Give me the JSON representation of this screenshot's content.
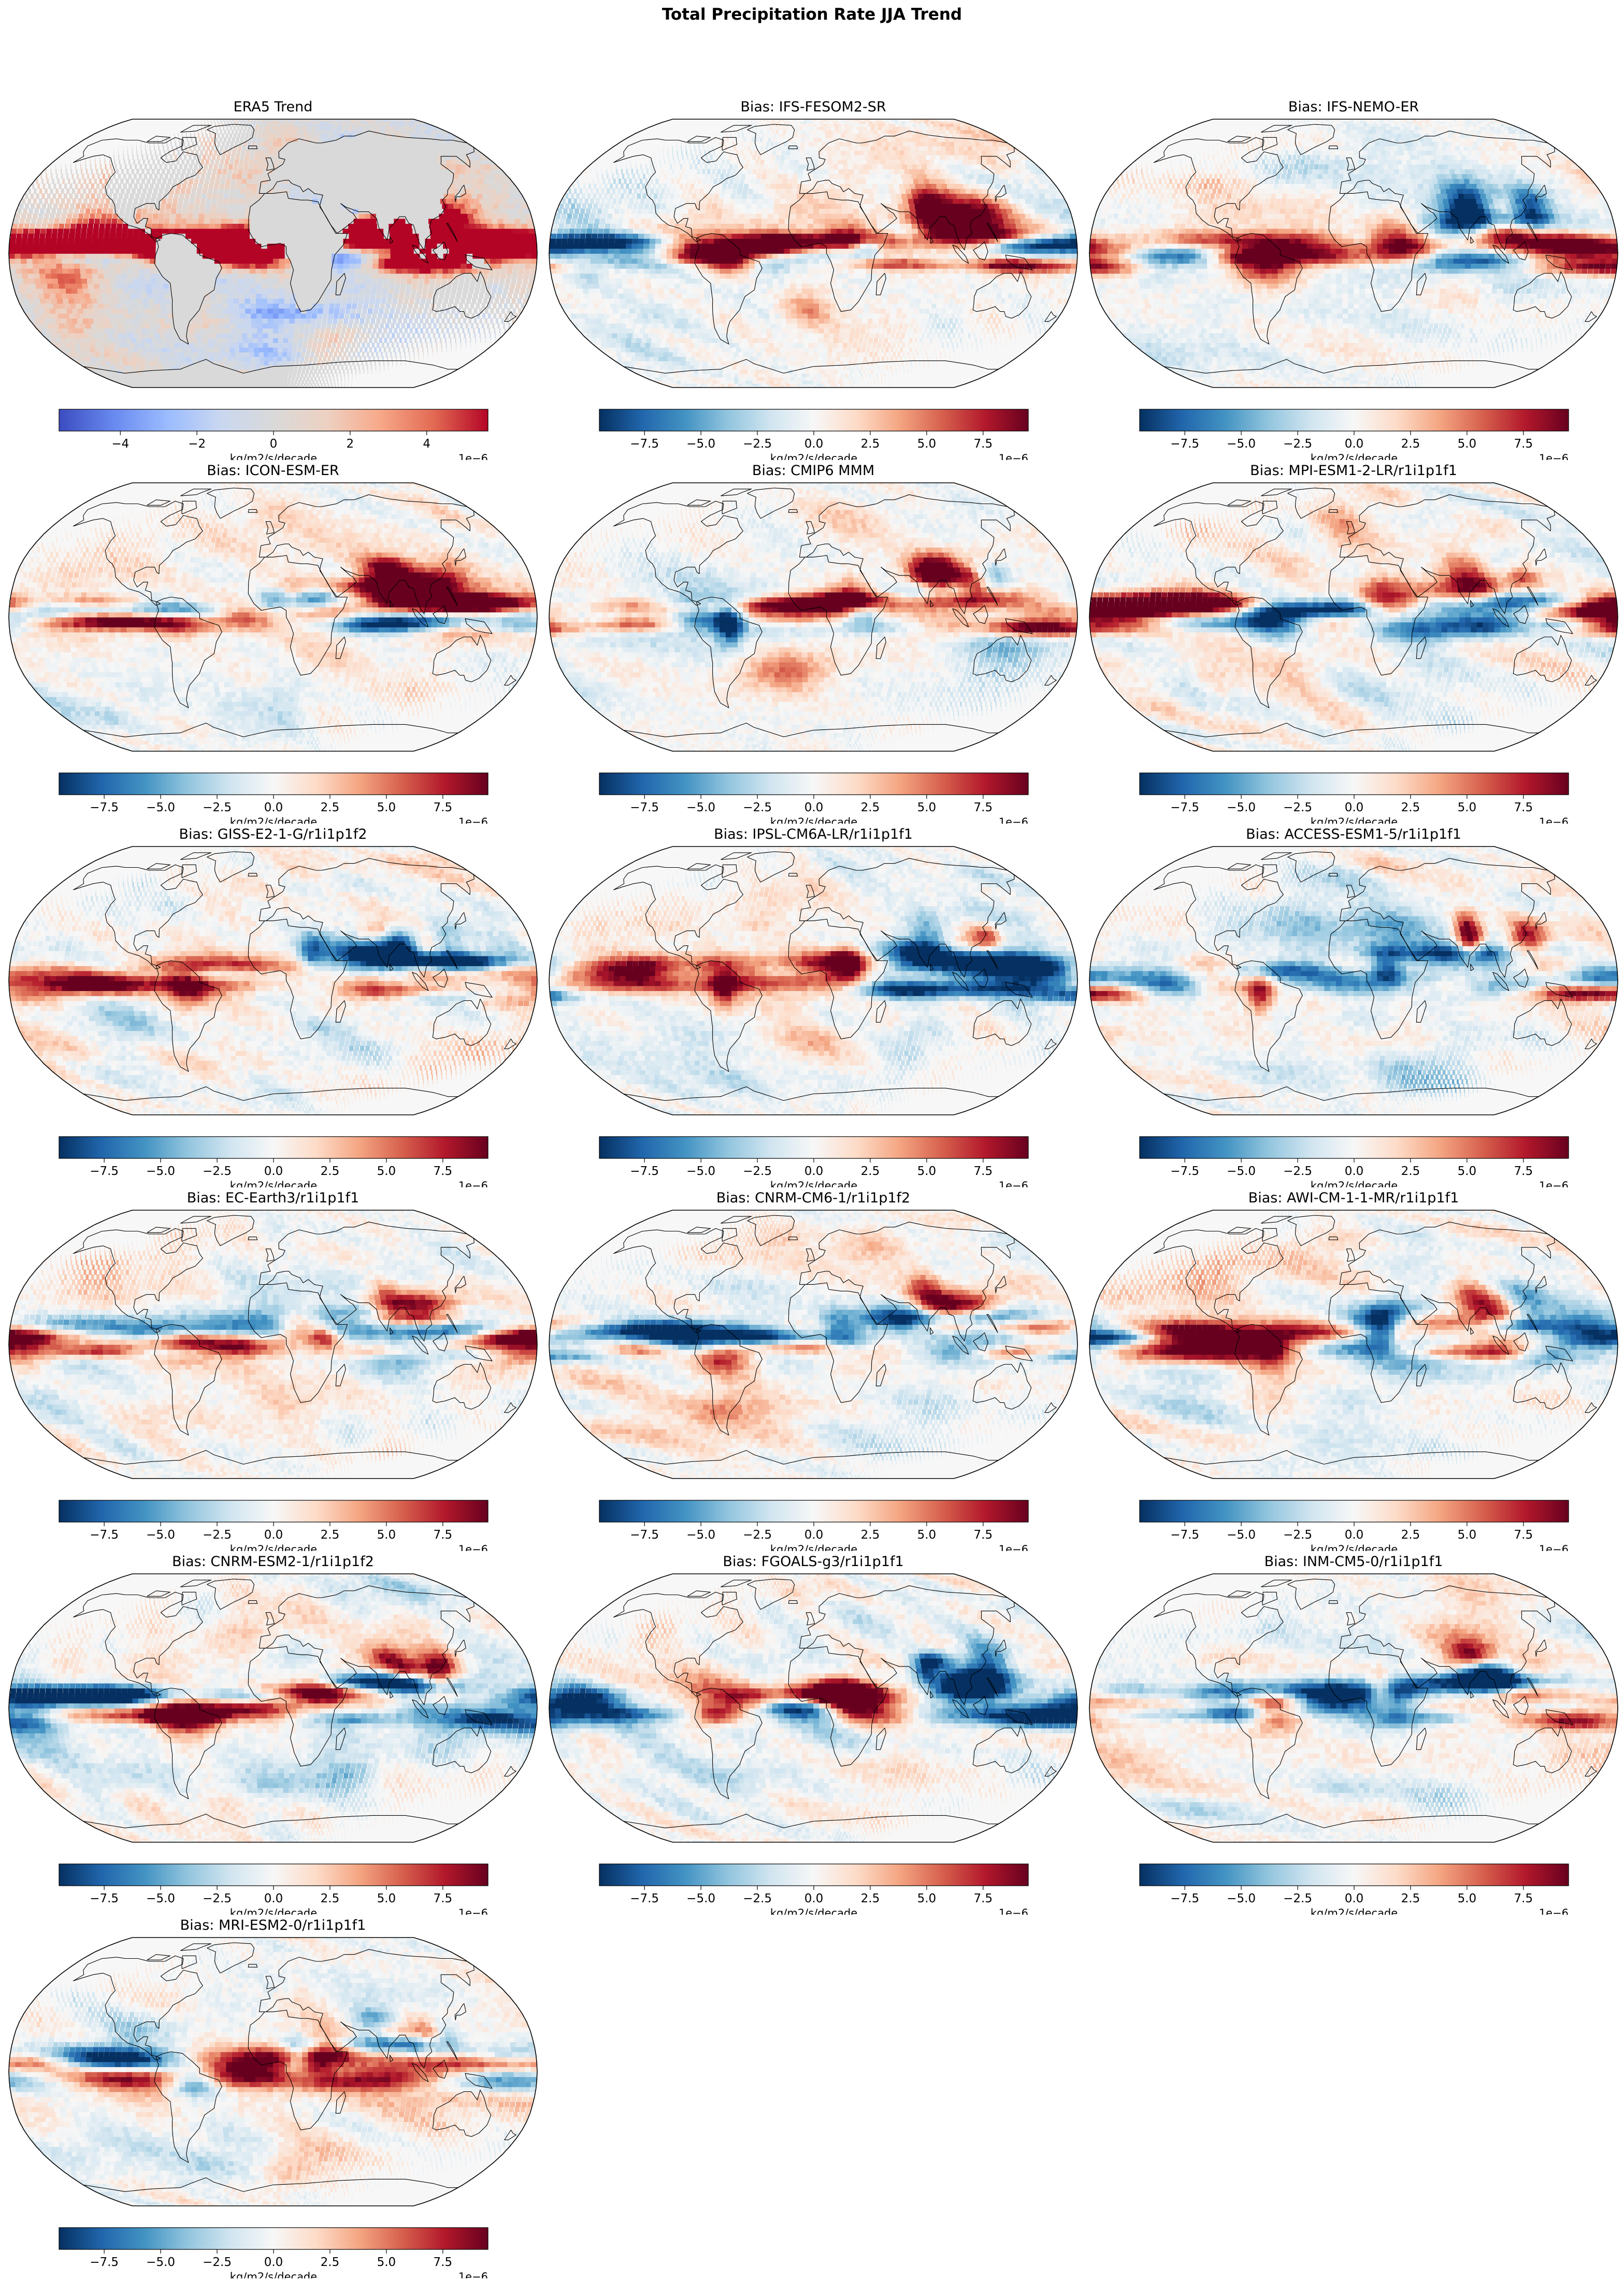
{
  "figure": {
    "title": "Total Precipitation Rate JJA Trend",
    "cmap": [
      "#053061",
      "#2166ac",
      "#4393c3",
      "#92c5de",
      "#d1e5f0",
      "#f7f7f7",
      "#fddbc7",
      "#f4a582",
      "#d6604d",
      "#b2182b",
      "#67001f"
    ],
    "cmap_era5": [
      "#3b4cc0",
      "#6788ee",
      "#9abbff",
      "#c9d7f0",
      "#d9d9d9",
      "#edd1c2",
      "#f7a889",
      "#e26952",
      "#b40426"
    ],
    "land_color": "#d9d9d9",
    "coast_color": "#000000"
  },
  "panels": [
    {
      "id": "era5",
      "title": "ERA5 Trend",
      "variant": "era5",
      "colorbar": {
        "label": "kg/m2/s/decade",
        "offset": "1e−6",
        "ticks": [
          "−4",
          "−2",
          "0",
          "2",
          "4"
        ],
        "tick_values": [
          -4,
          -2,
          0,
          2,
          4
        ],
        "vmin": -5.6,
        "vmax": 5.6
      }
    },
    {
      "id": "ifs-fesom2-sr",
      "title": "Bias: IFS-FESOM2-SR",
      "variant": "bias",
      "colorbar": {
        "label": "kg/m2/s/decade",
        "offset": "1e−6",
        "ticks": [
          "−7.5",
          "−5.0",
          "−2.5",
          "0.0",
          "2.5",
          "5.0",
          "7.5"
        ],
        "tick_values": [
          -7.5,
          -5,
          -2.5,
          0,
          2.5,
          5,
          7.5
        ],
        "vmin": -9.5,
        "vmax": 9.5
      }
    },
    {
      "id": "ifs-nemo-er",
      "title": "Bias: IFS-NEMO-ER",
      "variant": "bias",
      "colorbar": {
        "label": "kg/m2/s/decade",
        "offset": "1e−6",
        "ticks": [
          "−7.5",
          "−5.0",
          "−2.5",
          "0.0",
          "2.5",
          "5.0",
          "7.5"
        ],
        "tick_values": [
          -7.5,
          -5,
          -2.5,
          0,
          2.5,
          5,
          7.5
        ],
        "vmin": -9.5,
        "vmax": 9.5
      }
    },
    {
      "id": "icon-esm-er",
      "title": "Bias: ICON-ESM-ER",
      "variant": "bias",
      "colorbar": {
        "label": "kg/m2/s/decade",
        "offset": "1e−6",
        "ticks": [
          "−7.5",
          "−5.0",
          "−2.5",
          "0.0",
          "2.5",
          "5.0",
          "7.5"
        ],
        "tick_values": [
          -7.5,
          -5,
          -2.5,
          0,
          2.5,
          5,
          7.5
        ],
        "vmin": -9.5,
        "vmax": 9.5
      }
    },
    {
      "id": "cmip6-mmm",
      "title": "Bias: CMIP6 MMM",
      "variant": "bias",
      "colorbar": {
        "label": "kg/m2/s/decade",
        "offset": "1e−6",
        "ticks": [
          "−7.5",
          "−5.0",
          "−2.5",
          "0.0",
          "2.5",
          "5.0",
          "7.5"
        ],
        "tick_values": [
          -7.5,
          -5,
          -2.5,
          0,
          2.5,
          5,
          7.5
        ],
        "vmin": -9.5,
        "vmax": 9.5
      }
    },
    {
      "id": "mpi-esm1-2-lr",
      "title": "Bias: MPI-ESM1-2-LR/r1i1p1f1",
      "variant": "bias",
      "colorbar": {
        "label": "kg/m2/s/decade",
        "offset": "1e−6",
        "ticks": [
          "−7.5",
          "−5.0",
          "−2.5",
          "0.0",
          "2.5",
          "5.0",
          "7.5"
        ],
        "tick_values": [
          -7.5,
          -5,
          -2.5,
          0,
          2.5,
          5,
          7.5
        ],
        "vmin": -9.5,
        "vmax": 9.5
      }
    },
    {
      "id": "giss-e2-1-g",
      "title": "Bias: GISS-E2-1-G/r1i1p1f2",
      "variant": "bias",
      "colorbar": {
        "label": "kg/m2/s/decade",
        "offset": "1e−6",
        "ticks": [
          "−7.5",
          "−5.0",
          "−2.5",
          "0.0",
          "2.5",
          "5.0",
          "7.5"
        ],
        "tick_values": [
          -7.5,
          -5,
          -2.5,
          0,
          2.5,
          5,
          7.5
        ],
        "vmin": -9.5,
        "vmax": 9.5
      }
    },
    {
      "id": "ipsl-cm6a-lr",
      "title": "Bias: IPSL-CM6A-LR/r1i1p1f1",
      "variant": "bias",
      "colorbar": {
        "label": "kg/m2/s/decade",
        "offset": "1e−6",
        "ticks": [
          "−7.5",
          "−5.0",
          "−2.5",
          "0.0",
          "2.5",
          "5.0",
          "7.5"
        ],
        "tick_values": [
          -7.5,
          -5,
          -2.5,
          0,
          2.5,
          5,
          7.5
        ],
        "vmin": -9.5,
        "vmax": 9.5
      }
    },
    {
      "id": "access-esm1-5",
      "title": "Bias: ACCESS-ESM1-5/r1i1p1f1",
      "variant": "bias",
      "colorbar": {
        "label": "kg/m2/s/decade",
        "offset": "1e−6",
        "ticks": [
          "−7.5",
          "−5.0",
          "−2.5",
          "0.0",
          "2.5",
          "5.0",
          "7.5"
        ],
        "tick_values": [
          -7.5,
          -5,
          -2.5,
          0,
          2.5,
          5,
          7.5
        ],
        "vmin": -9.5,
        "vmax": 9.5
      }
    },
    {
      "id": "ec-earth3",
      "title": "Bias: EC-Earth3/r1i1p1f1",
      "variant": "bias",
      "colorbar": {
        "label": "kg/m2/s/decade",
        "offset": "1e−6",
        "ticks": [
          "−7.5",
          "−5.0",
          "−2.5",
          "0.0",
          "2.5",
          "5.0",
          "7.5"
        ],
        "tick_values": [
          -7.5,
          -5,
          -2.5,
          0,
          2.5,
          5,
          7.5
        ],
        "vmin": -9.5,
        "vmax": 9.5
      }
    },
    {
      "id": "cnrm-cm6-1",
      "title": "Bias: CNRM-CM6-1/r1i1p1f2",
      "variant": "bias",
      "colorbar": {
        "label": "kg/m2/s/decade",
        "offset": "1e−6",
        "ticks": [
          "−7.5",
          "−5.0",
          "−2.5",
          "0.0",
          "2.5",
          "5.0",
          "7.5"
        ],
        "tick_values": [
          -7.5,
          -5,
          -2.5,
          0,
          2.5,
          5,
          7.5
        ],
        "vmin": -9.5,
        "vmax": 9.5
      }
    },
    {
      "id": "awi-cm-1-1-mr",
      "title": "Bias: AWI-CM-1-1-MR/r1i1p1f1",
      "variant": "bias",
      "colorbar": {
        "label": "kg/m2/s/decade",
        "offset": "1e−6",
        "ticks": [
          "−7.5",
          "−5.0",
          "−2.5",
          "0.0",
          "2.5",
          "5.0",
          "7.5"
        ],
        "tick_values": [
          -7.5,
          -5,
          -2.5,
          0,
          2.5,
          5,
          7.5
        ],
        "vmin": -9.5,
        "vmax": 9.5
      }
    },
    {
      "id": "cnrm-esm2-1",
      "title": "Bias: CNRM-ESM2-1/r1i1p1f2",
      "variant": "bias",
      "colorbar": {
        "label": "kg/m2/s/decade",
        "offset": "1e−6",
        "ticks": [
          "−7.5",
          "−5.0",
          "−2.5",
          "0.0",
          "2.5",
          "5.0",
          "7.5"
        ],
        "tick_values": [
          -7.5,
          -5,
          -2.5,
          0,
          2.5,
          5,
          7.5
        ],
        "vmin": -9.5,
        "vmax": 9.5
      }
    },
    {
      "id": "fgoals-g3",
      "title": "Bias: FGOALS-g3/r1i1p1f1",
      "variant": "bias",
      "colorbar": {
        "label": "kg/m2/s/decade",
        "offset": "1e−6",
        "ticks": [
          "−7.5",
          "−5.0",
          "−2.5",
          "0.0",
          "2.5",
          "5.0",
          "7.5"
        ],
        "tick_values": [
          -7.5,
          -5,
          -2.5,
          0,
          2.5,
          5,
          7.5
        ],
        "vmin": -9.5,
        "vmax": 9.5
      }
    },
    {
      "id": "inm-cm5-0",
      "title": "Bias: INM-CM5-0/r1i1p1f1",
      "variant": "bias",
      "colorbar": {
        "label": "kg/m2/s/decade",
        "offset": "1e−6",
        "ticks": [
          "−7.5",
          "−5.0",
          "−2.5",
          "0.0",
          "2.5",
          "5.0",
          "7.5"
        ],
        "tick_values": [
          -7.5,
          -5,
          -2.5,
          0,
          2.5,
          5,
          7.5
        ],
        "vmin": -9.5,
        "vmax": 9.5
      }
    },
    {
      "id": "mri-esm2-0",
      "title": "Bias: MRI-ESM2-0/r1i1p1f1",
      "variant": "bias",
      "colorbar": {
        "label": "kg/m2/s/decade",
        "offset": "1e−6",
        "ticks": [
          "−7.5",
          "−5.0",
          "−2.5",
          "0.0",
          "2.5",
          "5.0",
          "7.5"
        ],
        "tick_values": [
          -7.5,
          -5,
          -2.5,
          0,
          2.5,
          5,
          7.5
        ],
        "vmin": -9.5,
        "vmax": 9.5
      }
    }
  ]
}
